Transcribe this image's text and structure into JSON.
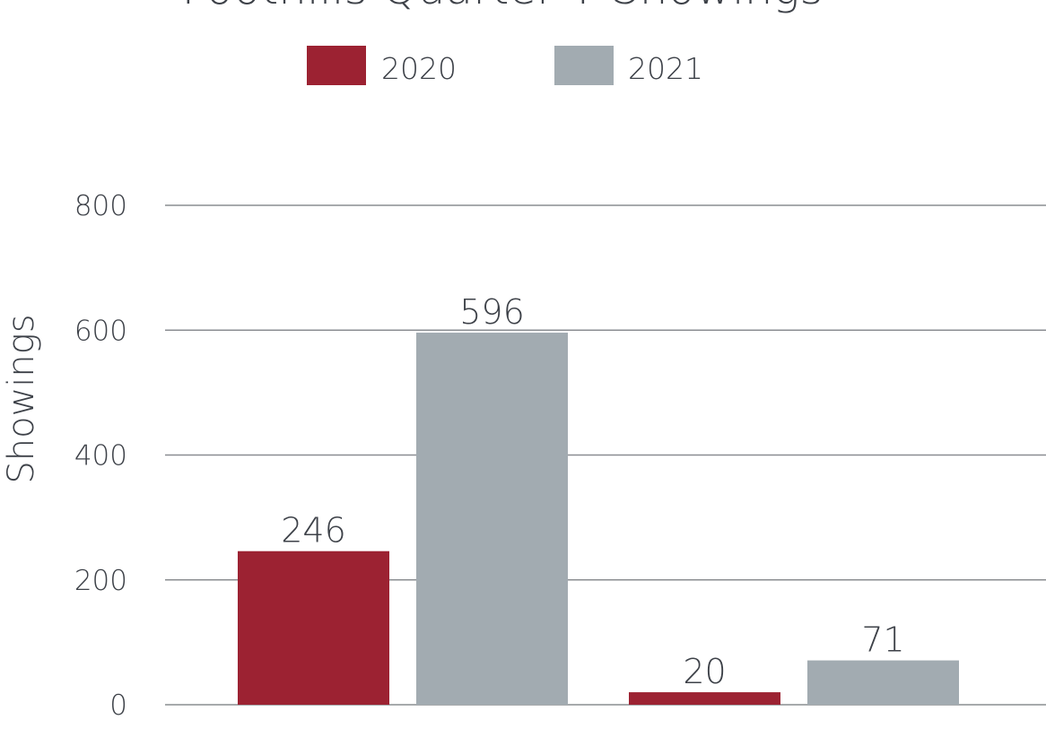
{
  "chart_data": {
    "type": "bar",
    "title": "Foothills Quarter Y Showings",
    "xlabel": "",
    "ylabel": "Showings",
    "categories": [
      "",
      ""
    ],
    "series": [
      {
        "name": "2020",
        "values": [
          246,
          20
        ],
        "color": "#9c2232"
      },
      {
        "name": "2021",
        "values": [
          596,
          71
        ],
        "color": "#a2abb1"
      }
    ],
    "yticks": [
      0,
      200,
      400,
      600,
      800
    ],
    "ylim": [
      0,
      800
    ],
    "grid": true,
    "legend_position": "top-center"
  }
}
